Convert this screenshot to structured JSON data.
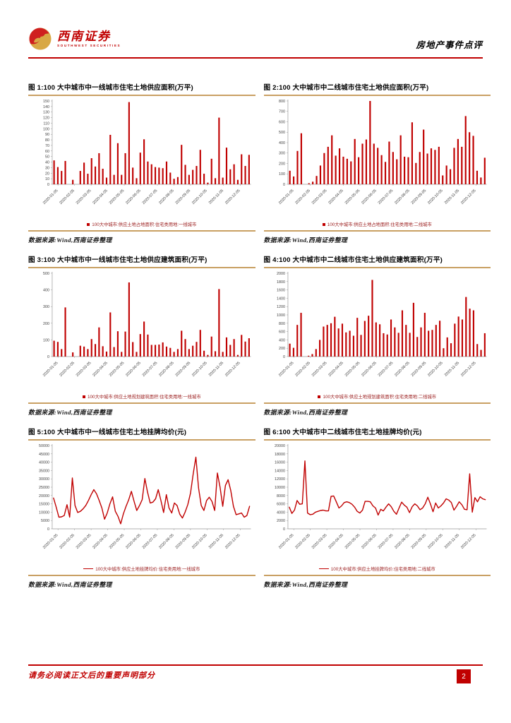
{
  "header": {
    "brand_cn": "西南证券",
    "brand_en": "SOUTHWEST SECURITIES",
    "doc_title": "房地产事件点评"
  },
  "source_note": "数据来源:Wind,西南证券整理",
  "footer": {
    "disclaimer": "请务必阅读正文后的重要声明部分",
    "page_number": "2"
  },
  "colors": {
    "accent_red": "#c00000",
    "gold": "#c9a063",
    "axis_gray": "#999999"
  },
  "chart_data": [
    {
      "type": "bar",
      "title": "图 1:100 大中城市中一线城市住宅土地供应面积(万平)",
      "legend": "100大中城市:供应土地占地面积:住宅类用地:一线城市",
      "ylim": [
        0,
        150
      ],
      "ytick_step": 10,
      "grid": false,
      "legend_position": "bottom",
      "x_labels": [
        "2020-01-05",
        "2020-02-05",
        "2020-03-05",
        "2020-04-05",
        "2020-05-05",
        "2020-06-05",
        "2020-07-05",
        "2020-08-05",
        "2020-09-05",
        "2020-10-05",
        "2020-11-05",
        "2020-12-05"
      ],
      "values": [
        43,
        31,
        24,
        42,
        0,
        8,
        0,
        24,
        39,
        19,
        47,
        32,
        56,
        28,
        12,
        89,
        17,
        74,
        17,
        56,
        148,
        30,
        11,
        57,
        81,
        41,
        36,
        31,
        30,
        29,
        41,
        21,
        10,
        13,
        71,
        35,
        17,
        26,
        33,
        62,
        19,
        3,
        46,
        11,
        120,
        12,
        66,
        27,
        36,
        8,
        54,
        33,
        53
      ]
    },
    {
      "type": "bar",
      "title": "图 2:100 大中城市中二线城市住宅土地供应面积(万平)",
      "legend": "100大中城市:供应土地占地面积:住宅类用地:二线城市",
      "ylim": [
        0,
        800
      ],
      "ytick_step": 100,
      "grid": false,
      "legend_position": "bottom",
      "x_labels": [
        "2020-01-05",
        "2020-02-05",
        "2020-03-05",
        "2020-04-05",
        "2020-05-05",
        "2020-06-05",
        "2020-07-05",
        "2020-08-05",
        "2020-09-05",
        "2020-10-05",
        "2020-11-05",
        "2020-12-05"
      ],
      "values": [
        130,
        75,
        320,
        490,
        0,
        10,
        25,
        80,
        180,
        300,
        360,
        470,
        275,
        345,
        265,
        245,
        220,
        435,
        260,
        390,
        430,
        800,
        390,
        350,
        280,
        215,
        410,
        310,
        240,
        470,
        265,
        260,
        595,
        205,
        310,
        525,
        295,
        345,
        330,
        360,
        85,
        180,
        145,
        350,
        435,
        360,
        655,
        500,
        465,
        130,
        65,
        255
      ]
    },
    {
      "type": "bar",
      "title": "图 3:100 大中城市中一线城市住宅土地供应建筑面积(万平)",
      "legend": "100大中城市:供应土地规划建筑面积:住宅类用地:一线城市",
      "ylim": [
        0,
        500
      ],
      "ytick_step": 100,
      "grid": false,
      "legend_position": "bottom",
      "x_labels": [
        "2020-01-05",
        "2020-02-05",
        "2020-03-05",
        "2020-04-05",
        "2020-05-05",
        "2020-06-05",
        "2020-07-05",
        "2020-08-05",
        "2020-09-05",
        "2020-10-05",
        "2020-11-05",
        "2020-12-05"
      ],
      "values": [
        95,
        88,
        45,
        295,
        0,
        25,
        0,
        65,
        60,
        45,
        105,
        75,
        175,
        62,
        30,
        265,
        57,
        152,
        28,
        150,
        445,
        87,
        28,
        135,
        210,
        132,
        70,
        70,
        72,
        85,
        60,
        52,
        28,
        45,
        155,
        105,
        45,
        65,
        88,
        160,
        35,
        10,
        120,
        32,
        405,
        28,
        115,
        70,
        105,
        10,
        130,
        90,
        110
      ]
    },
    {
      "type": "bar",
      "title": "图 4:100 大中城市中二线城市住宅土地供应建筑面积(万平)",
      "legend": "100大中城市:供应土地规划建筑面积:住宅类用地:二线城市",
      "ylim": [
        0,
        2000
      ],
      "ytick_step": 200,
      "grid": false,
      "legend_position": "bottom",
      "x_labels": [
        "2020-01-05",
        "2020-02-05",
        "2020-03-05",
        "2020-04-05",
        "2020-05-05",
        "2020-06-05",
        "2020-07-05",
        "2020-08-05",
        "2020-09-05",
        "2020-10-05",
        "2020-11-05",
        "2020-12-05"
      ],
      "values": [
        310,
        210,
        760,
        1050,
        0,
        20,
        60,
        180,
        400,
        720,
        760,
        800,
        955,
        675,
        790,
        580,
        620,
        500,
        930,
        520,
        855,
        980,
        1840,
        820,
        775,
        560,
        530,
        890,
        700,
        570,
        1110,
        760,
        570,
        1290,
        470,
        700,
        1050,
        620,
        640,
        760,
        860,
        200,
        460,
        320,
        790,
        960,
        890,
        1430,
        1150,
        1110,
        300,
        160,
        560
      ]
    },
    {
      "type": "line",
      "title": "图 5:100 大中城市中一线城市住宅土地挂牌均价(元)",
      "legend": "100大中城市:供应土地挂牌均价:住宅类用地:一线城市",
      "ylim": [
        0,
        50000
      ],
      "ytick_step": 5000,
      "grid": false,
      "legend_position": "bottom",
      "x_labels": [
        "2020-01-05",
        "2020-02-05",
        "2020-03-05",
        "2020-04-05",
        "2020-05-05",
        "2020-06-05",
        "2020-07-05",
        "2020-08-05",
        "2020-09-05",
        "2020-10-05",
        "2020-11-05",
        "2020-12-05"
      ],
      "values": [
        18500,
        13000,
        7000,
        7200,
        8000,
        14500,
        7000,
        30500,
        14000,
        9800,
        10500,
        12000,
        14000,
        17000,
        20500,
        23500,
        21000,
        17000,
        12500,
        5800,
        9500,
        15000,
        19200,
        10500,
        7500,
        3000,
        9000,
        13500,
        17500,
        22500,
        16500,
        11000,
        14000,
        17500,
        30200,
        22000,
        15500,
        16000,
        18000,
        23500,
        17000,
        9800,
        20500,
        12500,
        9500,
        15500,
        14000,
        8800,
        6500,
        10000,
        14500,
        21500,
        33000,
        43000,
        24500,
        14000,
        11000,
        17000,
        19000,
        16500,
        11000,
        33500,
        25000,
        13500,
        26000,
        29500,
        23000,
        13500,
        8500,
        9000,
        9500,
        7000,
        8000,
        13500
      ]
    },
    {
      "type": "line",
      "title": "图 6:100 大中城市中二线城市住宅土地挂牌均价(元)",
      "legend": "100大中城市:供应土地挂牌均价:住宅类用地:二线城市",
      "ylim": [
        0,
        20000
      ],
      "ytick_step": 2000,
      "grid": false,
      "legend_position": "bottom",
      "x_labels": [
        "2020-01-05",
        "2020-02-05",
        "2020-03-05",
        "2020-04-05",
        "2020-05-05",
        "2020-06-05",
        "2020-07-05",
        "2020-08-05",
        "2020-09-05",
        "2020-10-05",
        "2020-11-05",
        "2020-12-05"
      ],
      "values": [
        5200,
        3700,
        4500,
        6800,
        5900,
        6000,
        16300,
        3800,
        3400,
        3500,
        4000,
        4200,
        4400,
        4500,
        4300,
        4300,
        7800,
        7900,
        6500,
        5000,
        5500,
        6300,
        6500,
        6300,
        5900,
        5200,
        4200,
        3800,
        4500,
        6600,
        6600,
        6500,
        5500,
        5000,
        3300,
        4700,
        4300,
        5200,
        6000,
        5300,
        4200,
        3500,
        5000,
        6400,
        5700,
        5200,
        3900,
        5300,
        6000,
        5500,
        4600,
        5000,
        6000,
        7600,
        6000,
        4100,
        6200,
        5000,
        5500,
        6200,
        7200,
        6900,
        6300,
        4500,
        5400,
        6500,
        5800,
        4700,
        4600,
        13200,
        4000,
        7500,
        6500,
        7700,
        7200,
        7000
      ]
    }
  ]
}
